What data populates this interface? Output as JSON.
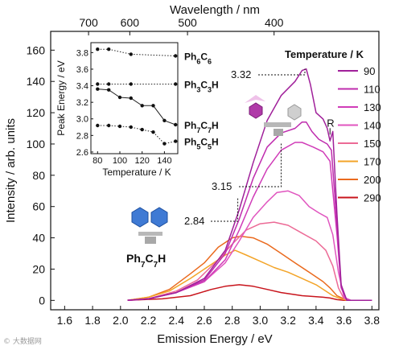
{
  "chart_data": {
    "type": "line",
    "xlabel": "Emission Energy / eV",
    "ylabel": "Intensity / arb. units",
    "x2label": "Wavelength / nm",
    "xlim": [
      1.5,
      3.85
    ],
    "ylim": [
      -6,
      172
    ],
    "xticks": [
      "1.6",
      "1.8",
      "2.0",
      "2.2",
      "2.4",
      "2.6",
      "2.8",
      "3.0",
      "3.2",
      "3.4",
      "3.6",
      "3.8"
    ],
    "yticks": [
      "0",
      "20",
      "40",
      "60",
      "80",
      "100",
      "120",
      "140",
      "160"
    ],
    "x2ticks": [
      {
        "nm": 700,
        "label": "700"
      },
      {
        "nm": 600,
        "label": "600"
      },
      {
        "nm": 500,
        "label": "500"
      },
      {
        "nm": 400,
        "label": "400"
      }
    ],
    "legend": {
      "title": "Temperature / K",
      "placement": "right"
    },
    "series": [
      {
        "name": "90",
        "color": "#a0209a",
        "points": [
          [
            2.05,
            0
          ],
          [
            2.2,
            1
          ],
          [
            2.4,
            5
          ],
          [
            2.6,
            14
          ],
          [
            2.75,
            32
          ],
          [
            2.85,
            58
          ],
          [
            2.95,
            88
          ],
          [
            3.05,
            115
          ],
          [
            3.15,
            131
          ],
          [
            3.25,
            140
          ],
          [
            3.3,
            147
          ],
          [
            3.33,
            148
          ],
          [
            3.36,
            138
          ],
          [
            3.4,
            120
          ],
          [
            3.45,
            116
          ],
          [
            3.48,
            110
          ],
          [
            3.5,
            102
          ],
          [
            3.52,
            108
          ],
          [
            3.55,
            55
          ],
          [
            3.58,
            10
          ],
          [
            3.62,
            0
          ],
          [
            3.8,
            0
          ]
        ]
      },
      {
        "name": "110",
        "color": "#bf2cae",
        "points": [
          [
            2.05,
            0
          ],
          [
            2.2,
            1
          ],
          [
            2.4,
            5
          ],
          [
            2.6,
            13
          ],
          [
            2.75,
            30
          ],
          [
            2.85,
            52
          ],
          [
            2.95,
            78
          ],
          [
            3.05,
            98
          ],
          [
            3.15,
            107
          ],
          [
            3.25,
            110
          ],
          [
            3.3,
            114
          ],
          [
            3.33,
            114
          ],
          [
            3.37,
            108
          ],
          [
            3.42,
            103
          ],
          [
            3.48,
            100
          ],
          [
            3.51,
            96
          ],
          [
            3.55,
            48
          ],
          [
            3.58,
            9
          ],
          [
            3.62,
            0
          ],
          [
            3.8,
            0
          ]
        ]
      },
      {
        "name": "130",
        "color": "#d03cb8",
        "points": [
          [
            2.05,
            0
          ],
          [
            2.2,
            1
          ],
          [
            2.4,
            5
          ],
          [
            2.6,
            12
          ],
          [
            2.75,
            26
          ],
          [
            2.85,
            45
          ],
          [
            2.95,
            66
          ],
          [
            3.05,
            84
          ],
          [
            3.15,
            96
          ],
          [
            3.25,
            101
          ],
          [
            3.3,
            101
          ],
          [
            3.38,
            98
          ],
          [
            3.45,
            95
          ],
          [
            3.5,
            89
          ],
          [
            3.55,
            42
          ],
          [
            3.58,
            8
          ],
          [
            3.62,
            0
          ],
          [
            3.8,
            0
          ]
        ]
      },
      {
        "name": "140",
        "color": "#e055bf",
        "points": [
          [
            2.05,
            0
          ],
          [
            2.2,
            1
          ],
          [
            2.4,
            5
          ],
          [
            2.6,
            12
          ],
          [
            2.75,
            24
          ],
          [
            2.85,
            38
          ],
          [
            2.95,
            53
          ],
          [
            3.05,
            63
          ],
          [
            3.12,
            69
          ],
          [
            3.2,
            70
          ],
          [
            3.28,
            67
          ],
          [
            3.35,
            60
          ],
          [
            3.42,
            56
          ],
          [
            3.48,
            53
          ],
          [
            3.52,
            42
          ],
          [
            3.56,
            18
          ],
          [
            3.6,
            2
          ],
          [
            3.65,
            0
          ],
          [
            3.8,
            0
          ]
        ]
      },
      {
        "name": "150",
        "color": "#ec6a96",
        "points": [
          [
            2.05,
            0
          ],
          [
            2.2,
            1
          ],
          [
            2.4,
            6
          ],
          [
            2.55,
            13
          ],
          [
            2.7,
            26
          ],
          [
            2.8,
            36
          ],
          [
            2.9,
            45
          ],
          [
            3.0,
            49
          ],
          [
            3.1,
            50
          ],
          [
            3.2,
            48
          ],
          [
            3.3,
            43
          ],
          [
            3.4,
            38
          ],
          [
            3.47,
            32
          ],
          [
            3.52,
            22
          ],
          [
            3.56,
            8
          ],
          [
            3.6,
            1
          ],
          [
            3.65,
            0
          ],
          [
            3.8,
            0
          ]
        ]
      },
      {
        "name": "170",
        "color": "#f3a428",
        "points": [
          [
            2.05,
            0
          ],
          [
            2.2,
            2
          ],
          [
            2.35,
            6
          ],
          [
            2.5,
            14
          ],
          [
            2.65,
            23
          ],
          [
            2.75,
            29
          ],
          [
            2.82,
            32
          ],
          [
            2.9,
            29
          ],
          [
            3.0,
            25
          ],
          [
            3.1,
            21
          ],
          [
            3.2,
            18
          ],
          [
            3.3,
            14
          ],
          [
            3.4,
            10
          ],
          [
            3.47,
            6
          ],
          [
            3.52,
            3
          ],
          [
            3.58,
            1
          ],
          [
            3.62,
            0
          ],
          [
            3.8,
            0
          ]
        ]
      },
      {
        "name": "200",
        "color": "#ea6a1e",
        "points": [
          [
            2.05,
            0
          ],
          [
            2.2,
            2
          ],
          [
            2.35,
            7
          ],
          [
            2.5,
            17
          ],
          [
            2.6,
            24
          ],
          [
            2.7,
            34
          ],
          [
            2.8,
            40
          ],
          [
            2.86,
            41
          ],
          [
            2.95,
            40
          ],
          [
            3.05,
            36
          ],
          [
            3.15,
            30
          ],
          [
            3.25,
            24
          ],
          [
            3.35,
            18
          ],
          [
            3.45,
            12
          ],
          [
            3.5,
            8
          ],
          [
            3.55,
            3
          ],
          [
            3.6,
            1
          ],
          [
            3.65,
            0
          ],
          [
            3.8,
            0
          ]
        ]
      },
      {
        "name": "290",
        "color": "#c8141c",
        "points": [
          [
            2.05,
            0
          ],
          [
            2.3,
            1
          ],
          [
            2.5,
            3
          ],
          [
            2.65,
            7
          ],
          [
            2.75,
            9
          ],
          [
            2.85,
            10
          ],
          [
            2.95,
            9
          ],
          [
            3.05,
            7
          ],
          [
            3.15,
            5
          ],
          [
            3.3,
            3
          ],
          [
            3.45,
            2
          ],
          [
            3.5,
            1.5
          ],
          [
            3.55,
            0.5
          ],
          [
            3.6,
            0
          ],
          [
            3.8,
            0
          ]
        ]
      }
    ],
    "annotations": [
      {
        "text": "3.32",
        "x": 3.32,
        "y": 147
      },
      {
        "text": "3.15",
        "x": 3.15,
        "y": 101
      },
      {
        "text": "2.84",
        "x": 2.84,
        "y": 66
      },
      {
        "text": "R",
        "x": 3.5,
        "y": 106
      }
    ],
    "structure_labels": [
      {
        "base": "Ph",
        "sub1": "7",
        "mid": "C",
        "sub2": "7",
        "end": "H"
      }
    ],
    "inset": {
      "type": "line",
      "xlabel": "Temperature / K",
      "ylabel": "Peak Energy / eV",
      "xlim": [
        74,
        152
      ],
      "ylim": [
        2.58,
        3.92
      ],
      "xticks": [
        "80",
        "100",
        "120",
        "140"
      ],
      "yticks": [
        "2.6",
        "2.8",
        "3.0",
        "3.2",
        "3.4",
        "3.6",
        "3.8"
      ],
      "series": [
        {
          "name": "Ph6C6",
          "label": {
            "base": "Ph",
            "sub1": "6",
            "mid": "C",
            "sub2": "6",
            "end": ""
          },
          "style": "dotted",
          "x": [
            80,
            90,
            110,
            150
          ],
          "y": [
            3.84,
            3.84,
            3.78,
            3.76
          ]
        },
        {
          "name": "Ph3C3H",
          "label": {
            "base": "Ph",
            "sub1": "3",
            "mid": "C",
            "sub2": "3",
            "end": "H"
          },
          "style": "dotted",
          "x": [
            80,
            90,
            110,
            150
          ],
          "y": [
            3.42,
            3.42,
            3.42,
            3.42
          ]
        },
        {
          "name": "Ph7C7H",
          "label": {
            "base": "Ph",
            "sub1": "7",
            "mid": "C",
            "sub2": "7",
            "end": "H"
          },
          "style": "solid",
          "x": [
            80,
            90,
            100,
            110,
            120,
            130,
            140,
            150
          ],
          "y": [
            3.36,
            3.35,
            3.26,
            3.25,
            3.16,
            3.16,
            2.98,
            2.93
          ]
        },
        {
          "name": "Ph5C5H",
          "label": {
            "base": "Ph",
            "sub1": "5",
            "mid": "C",
            "sub2": "5",
            "end": "H"
          },
          "style": "dotted",
          "x": [
            80,
            90,
            100,
            110,
            120,
            130,
            140,
            150
          ],
          "y": [
            2.92,
            2.92,
            2.91,
            2.9,
            2.87,
            2.84,
            2.7,
            2.73
          ]
        }
      ]
    }
  },
  "watermark": "© 大数据网"
}
